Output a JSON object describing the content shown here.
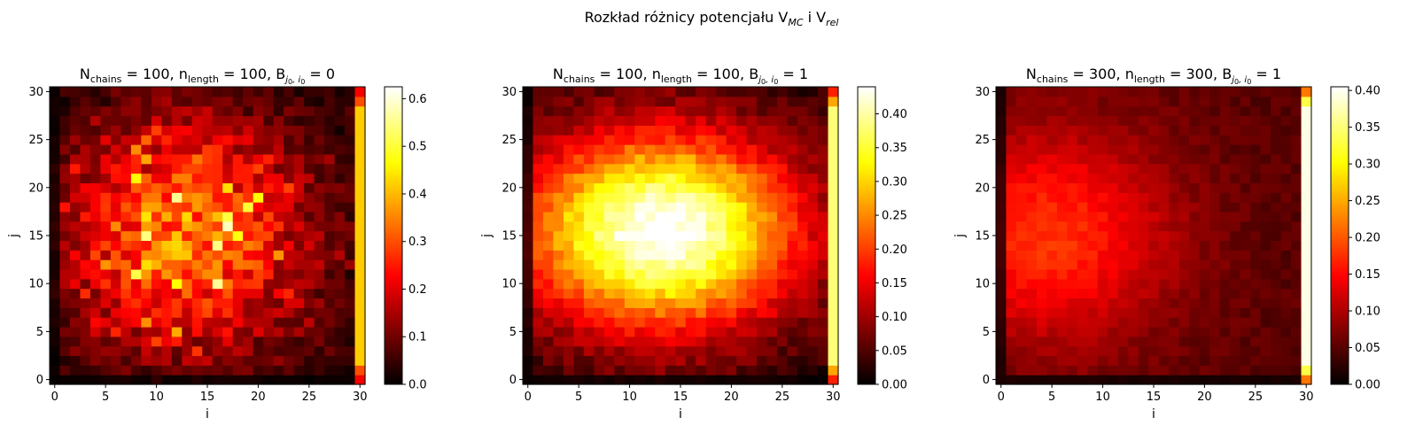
{
  "figure": {
    "suptitle_main": "Rozkład różnicy potencjału V",
    "suptitle_sub1": "MC",
    "suptitle_mid": " i V",
    "suptitle_sub2": "rel"
  },
  "chart_data": [
    {
      "type": "heatmap",
      "title": "N_chains = 100, n_length = 100, B_{j0,i0} = 0",
      "title_parts": {
        "n_chains": "100",
        "n_length": "100",
        "b_value": "0"
      },
      "xlabel": "i",
      "ylabel": "j",
      "xlim": [
        0,
        30
      ],
      "ylim": [
        0,
        30
      ],
      "xticks": [
        0,
        5,
        10,
        15,
        20,
        25,
        30
      ],
      "yticks": [
        0,
        5,
        10,
        15,
        20,
        25,
        30
      ],
      "grid_size": 31,
      "colormap": "hot",
      "colorbar_range": [
        0.0,
        0.625
      ],
      "colorbar_ticks": [
        "0.0",
        "0.1",
        "0.2",
        "0.3",
        "0.4",
        "0.5",
        "0.6"
      ],
      "colorbar_tick_values": [
        0.0,
        0.1,
        0.2,
        0.3,
        0.4,
        0.5,
        0.6
      ],
      "pattern": {
        "kind": "noisy_center",
        "center_i": 13,
        "center_j": 15,
        "sigma": 8.5,
        "peak": 0.3,
        "noise": 0.2,
        "seed": 11
      },
      "boundary_column": {
        "i": 30,
        "value": 0.42,
        "cap_high": 0.3,
        "cap_low": 0.22
      }
    },
    {
      "type": "heatmap",
      "title": "N_chains = 100, n_length = 100, B_{j0,i0} = 1",
      "title_parts": {
        "n_chains": "100",
        "n_length": "100",
        "b_value": "1"
      },
      "xlabel": "i",
      "ylabel": "j",
      "xlim": [
        0,
        30
      ],
      "ylim": [
        0,
        30
      ],
      "xticks": [
        0,
        5,
        10,
        15,
        20,
        25,
        30
      ],
      "yticks": [
        0,
        5,
        10,
        15,
        20,
        25,
        30
      ],
      "grid_size": 31,
      "colormap": "hot",
      "colorbar_range": [
        0.0,
        0.44
      ],
      "colorbar_ticks": [
        "0.00",
        "0.05",
        "0.10",
        "0.15",
        "0.20",
        "0.25",
        "0.30",
        "0.35",
        "0.40"
      ],
      "colorbar_tick_values": [
        0.0,
        0.05,
        0.1,
        0.15,
        0.2,
        0.25,
        0.3,
        0.35,
        0.4
      ],
      "pattern": {
        "kind": "smooth_blob",
        "center_i": 13,
        "center_j": 15.5,
        "sigma_i": 10,
        "sigma_j": 7.5,
        "peak": 0.43,
        "noise": 0.05,
        "seed": 23
      },
      "boundary_column": {
        "i": 30,
        "value": 0.38,
        "cap_high": 0.27,
        "cap_low": 0.18
      }
    },
    {
      "type": "heatmap",
      "title": "N_chains = 300, n_length = 300, B_{j0,i0} = 1",
      "title_parts": {
        "n_chains": "300",
        "n_length": "300",
        "b_value": "1"
      },
      "xlabel": "i",
      "ylabel": "j",
      "xlim": [
        0,
        30
      ],
      "ylim": [
        0,
        30
      ],
      "xticks": [
        0,
        5,
        10,
        15,
        20,
        25,
        30
      ],
      "yticks": [
        0,
        5,
        10,
        15,
        20,
        25,
        30
      ],
      "grid_size": 31,
      "colormap": "hot",
      "colorbar_range": [
        0.0,
        0.405
      ],
      "colorbar_ticks": [
        "0.00",
        "0.05",
        "0.10",
        "0.15",
        "0.20",
        "0.25",
        "0.30",
        "0.35",
        "0.40"
      ],
      "colorbar_tick_values": [
        0.0,
        0.05,
        0.1,
        0.15,
        0.2,
        0.25,
        0.3,
        0.35,
        0.4
      ],
      "pattern": {
        "kind": "faint_blob",
        "center_i": 7,
        "center_j": 15,
        "sigma_i": 9,
        "sigma_j": 8,
        "peak": 0.15,
        "base": 0.05,
        "noise": 0.025,
        "seed": 37
      },
      "boundary_column": {
        "i": 30,
        "value": 0.395,
        "cap_high": 0.33,
        "cap_low": 0.22
      }
    }
  ]
}
